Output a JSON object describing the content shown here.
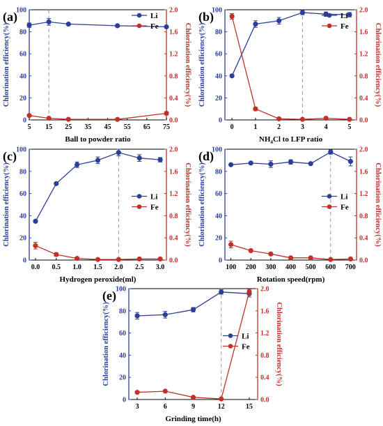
{
  "colors": {
    "li": "#2b3f99",
    "fe": "#c0312b",
    "guide": "#9a9a9a",
    "axis": "#000000"
  },
  "chart_data": [
    {
      "type": "line",
      "panel_label": "(a)",
      "xlabel": "Ball to powder ratio",
      "ylabel_left": "Chlorination efficiency(%)",
      "ylabel_right": "Chlorination efficiency(%)",
      "x_ticks": [
        "5",
        "15",
        "25",
        "35",
        "45",
        "55",
        "65",
        "75"
      ],
      "y_left_ticks": [
        "0",
        "20",
        "40",
        "60",
        "80",
        "100"
      ],
      "y_right_ticks": [
        "0.0",
        "0.4",
        "0.8",
        "1.2",
        "1.6",
        "2.0"
      ],
      "xlim": [
        5,
        75
      ],
      "ylim_left": [
        0,
        100
      ],
      "ylim_right": [
        0,
        2.0
      ],
      "guide_x": 15,
      "legend_position": "top-right",
      "series": [
        {
          "name": "Li",
          "axis": "left",
          "x": [
            5,
            15,
            25,
            50,
            75
          ],
          "values": [
            86,
            89,
            87,
            85.5,
            84.5
          ],
          "errors": [
            2,
            3,
            0,
            0,
            0
          ]
        },
        {
          "name": "Fe",
          "axis": "right",
          "x": [
            5,
            15,
            25,
            50,
            75
          ],
          "values": [
            0.08,
            0.03,
            0.01,
            0.01,
            0.12
          ],
          "errors": [
            0.02,
            0,
            0,
            0,
            0.03
          ]
        }
      ]
    },
    {
      "type": "line",
      "panel_label": "(b)",
      "xlabel": "NH",
      "xlabel_sub": "4",
      "xlabel_rest": "Cl to LFP ratio",
      "ylabel_left": "Chlorination efficiency(%)",
      "ylabel_right": "Chlorination efficiency(%)",
      "x_ticks": [
        "0",
        "1",
        "2",
        "3",
        "4",
        "5"
      ],
      "y_left_ticks": [
        "0",
        "20",
        "40",
        "60",
        "80",
        "100"
      ],
      "y_right_ticks": [
        "0.0",
        "0.4",
        "0.8",
        "1.2",
        "1.6",
        "2.0"
      ],
      "xlim": [
        -0.3,
        5.3
      ],
      "ylim_left": [
        0,
        100
      ],
      "ylim_right": [
        0,
        2.0
      ],
      "guide_x": 3,
      "legend_position": "top-right",
      "series": [
        {
          "name": "Li",
          "axis": "left",
          "x": [
            0,
            1,
            2,
            3,
            4,
            5
          ],
          "values": [
            40,
            87,
            90,
            97.5,
            96,
            95.5
          ],
          "errors": [
            0,
            3,
            3,
            2,
            2,
            2
          ]
        },
        {
          "name": "Fe",
          "axis": "right",
          "x": [
            0,
            1,
            2,
            3,
            4,
            5
          ],
          "values": [
            1.88,
            0.2,
            0.02,
            0.01,
            0.03,
            0.01
          ],
          "errors": [
            0.05,
            0.03,
            0,
            0,
            0.01,
            0
          ]
        }
      ]
    },
    {
      "type": "line",
      "panel_label": "(c)",
      "xlabel": "Hydrogen peroxide(ml)",
      "ylabel_left": "Chlorination efficiency(%)",
      "ylabel_right": "Chlorination efficiency(%)",
      "x_ticks": [
        "0.0",
        "0.5",
        "1.0",
        "1.5",
        "2.0",
        "2.5",
        "3.0"
      ],
      "y_left_ticks": [
        "0",
        "20",
        "40",
        "60",
        "80",
        "100"
      ],
      "y_right_ticks": [
        "0.0",
        "0.4",
        "0.8",
        "1.2",
        "1.6",
        "2.0"
      ],
      "xlim": [
        -0.15,
        3.15
      ],
      "ylim_left": [
        0,
        100
      ],
      "ylim_right": [
        0,
        2.0
      ],
      "guide_x": 2.0,
      "legend_position": "right",
      "series": [
        {
          "name": "Li",
          "axis": "left",
          "x": [
            0,
            0.5,
            1.0,
            1.5,
            2.0,
            2.5,
            3.0
          ],
          "values": [
            35,
            69,
            86,
            90,
            97,
            92,
            90.5
          ],
          "errors": [
            0,
            0,
            2.5,
            3,
            3,
            3,
            2
          ]
        },
        {
          "name": "Fe",
          "axis": "right",
          "x": [
            0,
            0.5,
            1.0,
            1.5,
            2.0,
            2.5,
            3.0
          ],
          "values": [
            0.26,
            0.1,
            0.03,
            0.01,
            0.01,
            0.02,
            0.02
          ],
          "errors": [
            0.06,
            0.03,
            0.01,
            0,
            0,
            0.01,
            0.01
          ]
        }
      ]
    },
    {
      "type": "line",
      "panel_label": "(d)",
      "xlabel": "Rotation speed(rpm)",
      "ylabel_left": "Chlorination efficiency(%)",
      "ylabel_right": "Chlorination efficiency(%)",
      "x_ticks": [
        "100",
        "200",
        "300",
        "400",
        "500",
        "600",
        "700"
      ],
      "y_left_ticks": [
        "0",
        "20",
        "40",
        "60",
        "80",
        "100"
      ],
      "y_right_ticks": [
        "0.0",
        "0.4",
        "0.8",
        "1.2",
        "1.6",
        "2.0"
      ],
      "xlim": [
        70,
        730
      ],
      "ylim_left": [
        0,
        100
      ],
      "ylim_right": [
        0,
        2.0
      ],
      "guide_x": 600,
      "legend_position": "right",
      "series": [
        {
          "name": "Li",
          "axis": "left",
          "x": [
            100,
            200,
            300,
            400,
            500,
            600,
            700
          ],
          "values": [
            86,
            87.5,
            86.5,
            88.5,
            87,
            97.5,
            89
          ],
          "errors": [
            0,
            0,
            3,
            2,
            0,
            2,
            4
          ]
        },
        {
          "name": "Fe",
          "axis": "right",
          "x": [
            100,
            200,
            300,
            400,
            500,
            600,
            700
          ],
          "values": [
            0.28,
            0.17,
            0.11,
            0.04,
            0.04,
            0.01,
            0.02
          ],
          "errors": [
            0.06,
            0.02,
            0.02,
            0.01,
            0.01,
            0,
            0
          ]
        }
      ]
    },
    {
      "type": "line",
      "panel_label": "(e)",
      "xlabel": "Grinding time(h)",
      "ylabel_left": "Chlorination efficiency(%)",
      "ylabel_right": "Chlorination efficiency(%)",
      "x_ticks": [
        "3",
        "6",
        "9",
        "12",
        "15"
      ],
      "y_left_ticks": [
        "0",
        "20",
        "40",
        "60",
        "80",
        "100"
      ],
      "y_right_ticks": [
        "0.0",
        "0.4",
        "0.8",
        "1.2",
        "1.6",
        "2.0"
      ],
      "xlim": [
        2.1,
        15.9
      ],
      "ylim_left": [
        0,
        100
      ],
      "ylim_right": [
        0,
        2.0
      ],
      "guide_x": 12,
      "legend_position": "right",
      "series": [
        {
          "name": "Li",
          "axis": "left",
          "x": [
            3,
            6,
            9,
            12,
            15
          ],
          "values": [
            75.5,
            76.5,
            81,
            97,
            95.5
          ],
          "errors": [
            3,
            3,
            2,
            2,
            3
          ]
        },
        {
          "name": "Fe",
          "axis": "right",
          "x": [
            3,
            6,
            9,
            12,
            15
          ],
          "values": [
            0.13,
            0.15,
            0.04,
            0.01,
            1.94
          ],
          "errors": [
            0,
            0,
            0,
            0,
            0.05
          ]
        }
      ]
    }
  ]
}
